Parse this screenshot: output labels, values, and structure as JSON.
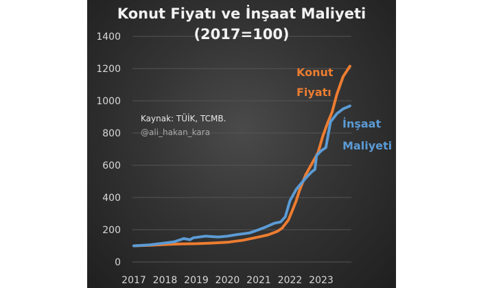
{
  "chart_data": {
    "type": "line",
    "title": "Konut Fiyatı ve İnşaat Maliyeti",
    "subtitle": "(2017=100)",
    "xlabel": "",
    "ylabel": "",
    "xlim": [
      2017,
      2024
    ],
    "ylim": [
      0,
      1400
    ],
    "yticks": [
      0,
      200,
      400,
      600,
      800,
      1000,
      1200,
      1400
    ],
    "xticks": [
      2017,
      2018,
      2019,
      2020,
      2021,
      2022,
      2023
    ],
    "grid": true,
    "annotations": [
      "Kaynak: TÜİK, TCMB.",
      "@ali_hakan_kara"
    ],
    "series": [
      {
        "name": "Konut Fiyatı",
        "name_lines": [
          "Konut",
          "Fiyatı"
        ],
        "color": "#ed7d31",
        "x": [
          2017.0,
          2017.5,
          2018.0,
          2018.5,
          2019.0,
          2019.5,
          2020.0,
          2020.5,
          2021.0,
          2021.3,
          2021.6,
          2021.75,
          2021.95,
          2022.1,
          2022.2,
          2022.3,
          2022.5,
          2022.7,
          2022.9,
          2023.05,
          2023.2,
          2023.35,
          2023.5,
          2023.7,
          2023.92
        ],
        "y": [
          100,
          103,
          108,
          112,
          113,
          117,
          122,
          135,
          155,
          168,
          190,
          210,
          260,
          330,
          380,
          440,
          540,
          610,
          680,
          780,
          860,
          930,
          1040,
          1150,
          1215
        ]
      },
      {
        "name": "İnşaat Maliyeti",
        "name_lines": [
          "İnşaat",
          "Maliyeti"
        ],
        "color": "#5b9bd5",
        "x": [
          2017.0,
          2017.5,
          2018.0,
          2018.3,
          2018.6,
          2018.8,
          2018.9,
          2019.3,
          2019.7,
          2020.0,
          2020.3,
          2020.7,
          2021.0,
          2021.2,
          2021.5,
          2021.7,
          2021.85,
          2022.0,
          2022.2,
          2022.5,
          2022.7,
          2022.8,
          2022.85,
          2023.0,
          2023.15,
          2023.3,
          2023.5,
          2023.7,
          2023.92
        ],
        "y": [
          100,
          106,
          118,
          125,
          145,
          138,
          150,
          160,
          155,
          160,
          170,
          180,
          200,
          215,
          240,
          248,
          280,
          380,
          450,
          520,
          560,
          575,
          660,
          690,
          710,
          870,
          920,
          950,
          968
        ]
      }
    ]
  }
}
